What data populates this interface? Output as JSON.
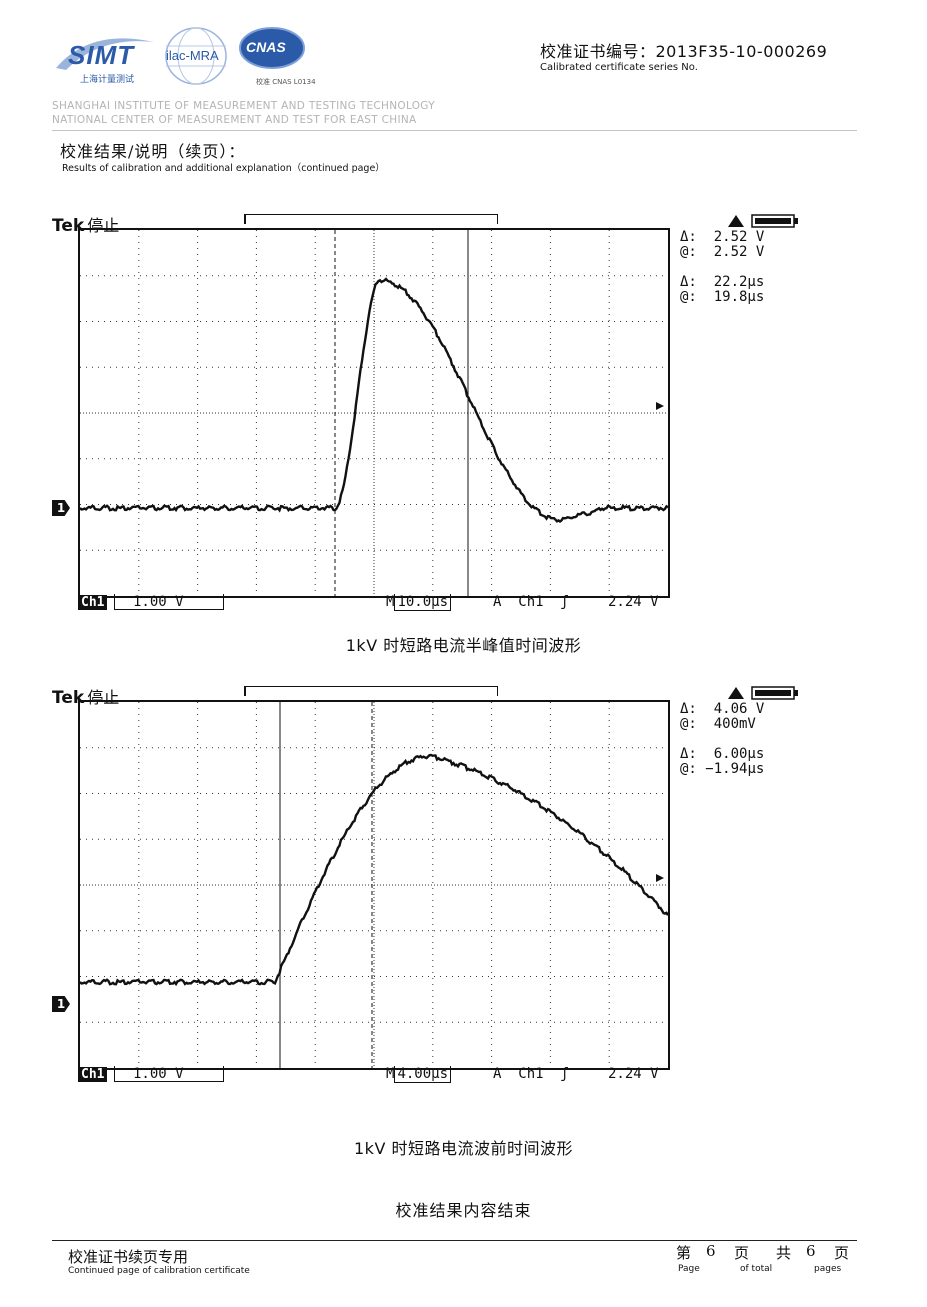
{
  "header": {
    "logos": {
      "simt": "SIMT",
      "simt_sub": "上海计量测试",
      "ilac": "ilac-MRA",
      "cnas": "CNAS",
      "cnas_label": "校准 CNAS L0134"
    },
    "certificate_no_label": "校准证书编号：2013F35-10-000269",
    "certificate_no_en": "Calibrated certificate series No.",
    "institute_line1": "SHANGHAI INSTITUTE OF MEASUREMENT AND TESTING TECHNOLOGY",
    "institute_line2": "NATIONAL CENTER OF MEASUREMENT AND TEST FOR EAST CHINA",
    "section_title": "校准结果/说明（续页）：",
    "section_title_en": "Results of calibration and additional explanation（continued page）"
  },
  "scopes": [
    {
      "brand": "Tek",
      "state": "停止",
      "readout": {
        "dv_label": "Δ:",
        "dv_value": "2.52 V",
        "av_label": "@:",
        "av_value": "2.52 V",
        "dt_label": "Δ:",
        "dt_value": "22.2µs",
        "at_label": "@:",
        "at_value": "19.8µs"
      },
      "channel": "Ch1",
      "volts_div": "1.00 V",
      "timebase_prefix": "M",
      "timebase": "10.0µs",
      "trigger": "A  Ch1  ʃ",
      "trigger_level": "2.24 V",
      "ch_marker": "1",
      "caption": "1kV 时短路电流半峰值时间波形"
    },
    {
      "brand": "Tek",
      "state": "停止",
      "readout": {
        "dv_label": "Δ:",
        "dv_value": "4.06 V",
        "av_label": "@:",
        "av_value": "400mV",
        "dt_label": "Δ:",
        "dt_value": "6.00µs",
        "at_label": "@:",
        "at_value": "−1.94µs"
      },
      "channel": "Ch1",
      "volts_div": "1.00 V",
      "timebase_prefix": "M",
      "timebase": "4.00µs",
      "trigger": "A  Ch1  ʃ",
      "trigger_level": "2.24 V",
      "ch_marker": "1",
      "caption": "1kV 时短路电流波前时间波形"
    }
  ],
  "end_note": "校准结果内容结束",
  "footer": {
    "title": "校准证书续页专用",
    "title_en": "Continued page of calibration certificate",
    "page_label_prefix": "第",
    "page_number": "6",
    "page_label_mid": "页",
    "total_prefix": "共",
    "total_pages": "6",
    "total_suffix": "页",
    "page_en": "Page",
    "of_total_en": "of total",
    "pages_en": "pages"
  }
}
